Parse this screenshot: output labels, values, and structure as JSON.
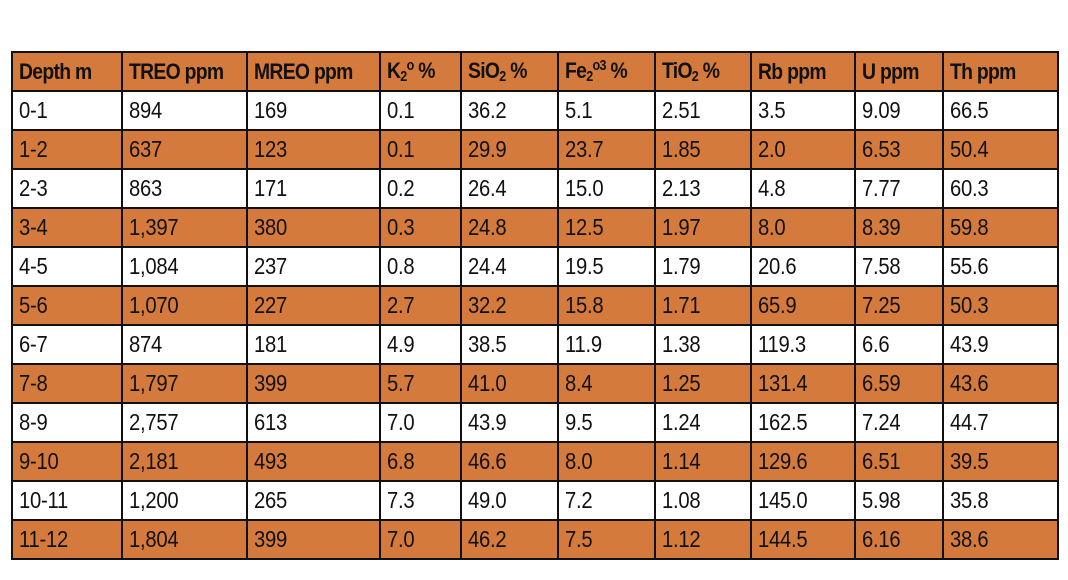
{
  "table": {
    "headers": [
      {
        "key": "depth",
        "text": "Depth m"
      },
      {
        "key": "treo",
        "text": "TREO ppm"
      },
      {
        "key": "mreo",
        "text": "MREO ppm"
      },
      {
        "key": "k2o",
        "pre": "K",
        "sub": "2",
        "sup": "o",
        "post": " %"
      },
      {
        "key": "sio2",
        "pre": "SiO",
        "sub": "2",
        "post": " %"
      },
      {
        "key": "fe2o3",
        "pre": "Fe",
        "sub": "2",
        "sup": "o3",
        "post": " %"
      },
      {
        "key": "tio2",
        "pre": "TiO",
        "sub": "2",
        "post": " %"
      },
      {
        "key": "rb",
        "text": "Rb ppm"
      },
      {
        "key": "u",
        "text": "U ppm"
      },
      {
        "key": "th",
        "text": "Th ppm"
      }
    ],
    "rows": [
      [
        "0-1",
        "894",
        "169",
        "0.1",
        "36.2",
        "5.1",
        "2.51",
        "3.5",
        "9.09",
        "66.5"
      ],
      [
        "1-2",
        "637",
        "123",
        "0.1",
        "29.9",
        "23.7",
        "1.85",
        "2.0",
        "6.53",
        "50.4"
      ],
      [
        "2-3",
        "863",
        "171",
        "0.2",
        "26.4",
        "15.0",
        "2.13",
        "4.8",
        "7.77",
        "60.3"
      ],
      [
        "3-4",
        "1,397",
        "380",
        "0.3",
        "24.8",
        "12.5",
        "1.97",
        "8.0",
        "8.39",
        "59.8"
      ],
      [
        "4-5",
        "1,084",
        "237",
        "0.8",
        "24.4",
        "19.5",
        "1.79",
        "20.6",
        "7.58",
        "55.6"
      ],
      [
        "5-6",
        "1,070",
        "227",
        "2.7",
        "32.2",
        "15.8",
        "1.71",
        "65.9",
        "7.25",
        "50.3"
      ],
      [
        "6-7",
        "874",
        "181",
        "4.9",
        "38.5",
        "11.9",
        "1.38",
        "119.3",
        "6.6",
        "43.9"
      ],
      [
        "7-8",
        "1,797",
        "399",
        "5.7",
        "41.0",
        "8.4",
        "1.25",
        "131.4",
        "6.59",
        "43.6"
      ],
      [
        "8-9",
        "2,757",
        "613",
        "7.0",
        "43.9",
        "9.5",
        "1.24",
        "162.5",
        "7.24",
        "44.7"
      ],
      [
        "9-10",
        "2,181",
        "493",
        "6.8",
        "46.6",
        "8.0",
        "1.14",
        "129.6",
        "6.51",
        "39.5"
      ],
      [
        "10-11",
        "1,200",
        "265",
        "7.3",
        "49.0",
        "7.2",
        "1.08",
        "145.0",
        "5.98",
        "35.8"
      ],
      [
        "11-12",
        "1,804",
        "399",
        "7.0",
        "46.2",
        "7.5",
        "1.12",
        "144.5",
        "6.16",
        "38.6"
      ]
    ]
  },
  "colors": {
    "header_bg": "#d47a3c",
    "shaded_row_bg": "#d47a3c",
    "plain_row_bg": "#ffffff",
    "border": "#111111",
    "text": "#111111"
  }
}
